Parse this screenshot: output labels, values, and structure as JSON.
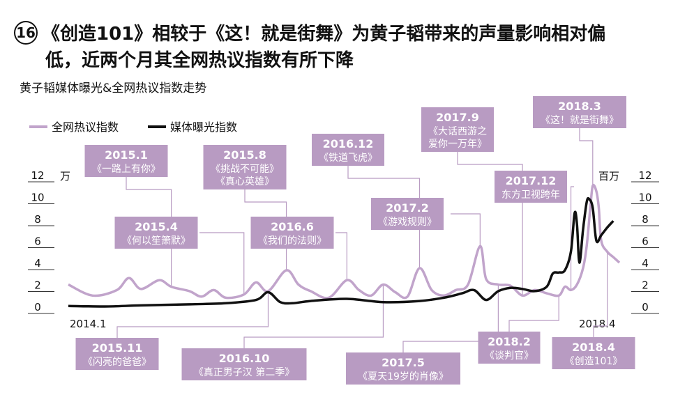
{
  "header": {
    "number": "16",
    "title_line1": "《创造101》相较于《这！就是街舞》为黄子韬带来的声量影响相对偏",
    "title_line2": "低，近两个月其全网热议指数有所下降",
    "subtitle": "黄子韬媒体曝光&全网热议指数走势"
  },
  "colors": {
    "discussion": "#c1a4cb",
    "exposure": "#111111",
    "annotation_bg": "#b89bc2"
  },
  "chart_data": {
    "type": "line",
    "x_start_label": "2014.1",
    "x_end_label": "2018.4",
    "ylim": [
      0,
      12
    ],
    "y_ticks": [
      "0",
      "2",
      "4",
      "6",
      "8",
      "10",
      "12"
    ],
    "left_axis_unit": "万",
    "right_axis_unit": "百万",
    "legend_position": "top-left",
    "series": [
      {
        "name": "全网热议指数",
        "x": [
          2014.0,
          2014.2,
          2014.4,
          2014.5,
          2014.6,
          2014.75,
          2014.85,
          2015.0,
          2015.1,
          2015.2,
          2015.3,
          2015.45,
          2015.55,
          2015.65,
          2015.8,
          2015.9,
          2016.0,
          2016.15,
          2016.3,
          2016.4,
          2016.5,
          2016.6,
          2016.7,
          2016.8,
          2016.9,
          2017.0,
          2017.1,
          2017.2,
          2017.3,
          2017.4,
          2017.45,
          2017.55,
          2017.65,
          2017.75,
          2017.85,
          2017.95,
          2018.05,
          2018.1,
          2018.15,
          2018.2,
          2018.25,
          2018.28,
          2018.31,
          2018.33,
          2018.36,
          2018.38,
          2018.4,
          2018.45,
          2018.5,
          2018.55
        ],
        "values": [
          2.0,
          1.0,
          1.5,
          2.6,
          1.6,
          2.4,
          1.8,
          1.4,
          0.9,
          1.5,
          0.8,
          1.1,
          2.2,
          1.4,
          3.3,
          2.0,
          1.4,
          0.8,
          2.4,
          1.5,
          1.0,
          2.0,
          1.3,
          0.9,
          3.5,
          1.5,
          1.0,
          1.5,
          2.0,
          5.5,
          2.5,
          2.0,
          1.9,
          1.0,
          1.5,
          1.2,
          1.0,
          1.8,
          1.5,
          2.0,
          3.5,
          5.5,
          9.0,
          11.0,
          10.5,
          9.0,
          6.0,
          5.0,
          4.5,
          4.0
        ]
      },
      {
        "name": "媒体曝光指数",
        "x": [
          2014.0,
          2014.3,
          2014.6,
          2015.0,
          2015.3,
          2015.55,
          2015.65,
          2015.75,
          2015.85,
          2016.0,
          2016.3,
          2016.6,
          2016.9,
          2017.1,
          2017.25,
          2017.35,
          2017.45,
          2017.55,
          2017.65,
          2017.75,
          2017.85,
          2017.95,
          2018.0,
          2018.05,
          2018.1,
          2018.15,
          2018.18,
          2018.2,
          2018.22,
          2018.25,
          2018.28,
          2018.3,
          2018.33,
          2018.36,
          2018.4,
          2018.45,
          2018.5
        ],
        "values": [
          0.05,
          0.0,
          0.1,
          0.2,
          0.3,
          0.6,
          1.3,
          0.4,
          0.3,
          0.5,
          0.7,
          0.4,
          0.5,
          0.8,
          1.2,
          1.5,
          0.6,
          1.4,
          1.7,
          1.6,
          1.4,
          1.8,
          3.0,
          3.1,
          3.3,
          5.0,
          8.5,
          7.5,
          4.0,
          7.0,
          9.5,
          9.8,
          9.0,
          6.0,
          6.5,
          7.2,
          7.8
        ]
      }
    ],
    "annotations": [
      {
        "date": "2015.1",
        "text": "《一路上有你》"
      },
      {
        "date": "2015.4",
        "text": "《何以笙箫默》"
      },
      {
        "date": "2015.8",
        "text": "《挑战不可能》",
        "text2": "《真心英雄》"
      },
      {
        "date": "2015.11",
        "text": "《闪亮的爸爸》"
      },
      {
        "date": "2016.6",
        "text": "《我们的法则》"
      },
      {
        "date": "2016.10",
        "text": "《真正男子汉 第二季》"
      },
      {
        "date": "2016.12",
        "text": "《铁道飞虎》"
      },
      {
        "date": "2017.2",
        "text": "《游戏规则》"
      },
      {
        "date": "2017.5",
        "text": "《夏天19岁的肖像》"
      },
      {
        "date": "2017.9",
        "text": "《大话西游之",
        "text2": "爱你一万年》"
      },
      {
        "date": "2017.12",
        "text": "东方卫视跨年"
      },
      {
        "date": "2018.2",
        "text": "《谈判官》"
      },
      {
        "date": "2018.3",
        "text": "《这！就是街舞》"
      },
      {
        "date": "2018.4",
        "text": "《创造101》"
      }
    ]
  }
}
